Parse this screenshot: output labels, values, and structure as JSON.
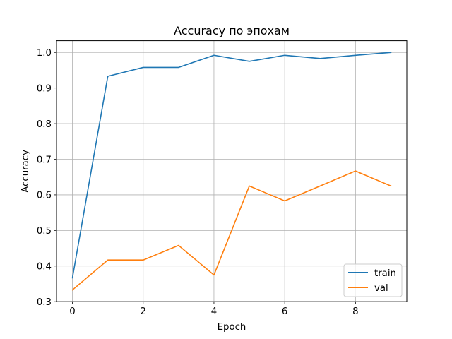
{
  "chart_data": {
    "type": "line",
    "title": "Accuracy по эпохам",
    "xlabel": "Epoch",
    "ylabel": "Accuracy",
    "x": [
      0,
      1,
      2,
      3,
      4,
      5,
      6,
      7,
      8,
      9
    ],
    "xlim": [
      -0.45,
      9.45
    ],
    "ylim": [
      0.3,
      1.033
    ],
    "xticks": [
      0,
      2,
      4,
      6,
      8
    ],
    "yticks": [
      0.3,
      0.4,
      0.5,
      0.6,
      0.7,
      0.8,
      0.9,
      1.0
    ],
    "xtick_labels": [
      "0",
      "2",
      "4",
      "6",
      "8"
    ],
    "ytick_labels": [
      "0.3",
      "0.4",
      "0.5",
      "0.6",
      "0.7",
      "0.8",
      "0.9",
      "1.0"
    ],
    "grid": true,
    "legend_position": "lower-right",
    "series": [
      {
        "name": "train",
        "color": "#1f77b4",
        "values": [
          0.367,
          0.933,
          0.958,
          0.958,
          0.992,
          0.975,
          0.992,
          0.983,
          0.992,
          1.0
        ]
      },
      {
        "name": "val",
        "color": "#ff7f0e",
        "values": [
          0.333,
          0.417,
          0.417,
          0.458,
          0.375,
          0.625,
          0.583,
          0.625,
          0.667,
          0.625
        ]
      }
    ]
  }
}
